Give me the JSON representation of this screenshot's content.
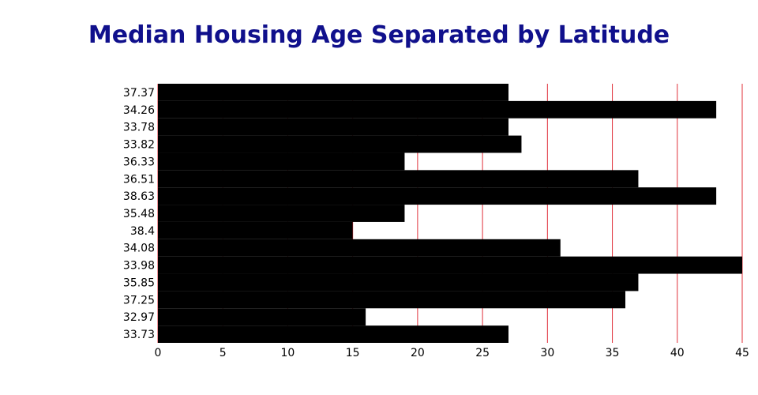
{
  "chart_data": {
    "type": "bar",
    "orientation": "horizontal",
    "title": "Median Housing Age Separated by Latitude",
    "xlabel": "",
    "ylabel": "",
    "xlim": [
      0,
      45
    ],
    "x_ticks": [
      "0",
      "5",
      "10",
      "15",
      "20",
      "25",
      "30",
      "35",
      "40",
      "45"
    ],
    "grid": "vertical",
    "categories": [
      "37.37",
      "34.26",
      "33.78",
      "33.82",
      "36.33",
      "36.51",
      "38.63",
      "35.48",
      "38.4",
      "34.08",
      "33.98",
      "35.85",
      "37.25",
      "32.97",
      "33.73"
    ],
    "values": [
      27,
      43,
      27,
      28,
      19,
      37,
      43,
      19,
      15,
      31,
      45,
      37,
      36,
      16,
      27
    ]
  },
  "colors": {
    "bar": "#000000",
    "grid": "#e0303a",
    "title": "#10108c"
  }
}
